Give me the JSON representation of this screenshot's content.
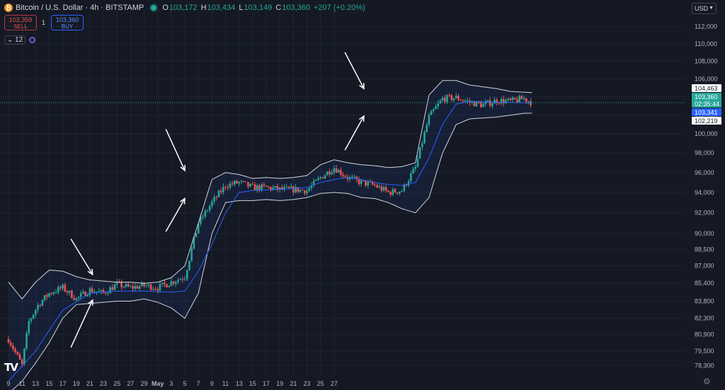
{
  "header": {
    "symbol_icon": "bitcoin-icon",
    "title": "Bitcoin / U.S. Dollar · 4h · BITSTAMP",
    "ohlc": [
      {
        "key": "O",
        "value": "103,172"
      },
      {
        "key": "H",
        "value": "103,434"
      },
      {
        "key": "L",
        "value": "103,149"
      },
      {
        "key": "C",
        "value": "103,360"
      }
    ],
    "change": "+207 (+0.20%)"
  },
  "trade": {
    "sell_price": "103,359",
    "sell_label": "SELL",
    "quantity": "1",
    "buy_price": "103,360",
    "buy_label": "BUY"
  },
  "indicators": {
    "collapsed_count": "12"
  },
  "currency": "USD",
  "colors": {
    "background": "#151924",
    "up": "#26a69a",
    "down": "#ef5350",
    "basis": "#2962ff",
    "band": "#d1d4dc",
    "arrow": "#ffffff"
  },
  "chart_data": {
    "type": "candlestick",
    "title": "",
    "xlabel": "",
    "ylabel": "",
    "scale": "log",
    "ylim": [
      77500,
      114000
    ],
    "x_ticks": [
      "9",
      "11",
      "13",
      "15",
      "17",
      "19",
      "21",
      "23",
      "25",
      "27",
      "29",
      "May",
      "3",
      "5",
      "7",
      "9",
      "11",
      "13",
      "15",
      "17",
      "19",
      "21",
      "23",
      "25",
      "27"
    ],
    "y_ticks": [
      112000,
      110000,
      108000,
      106000,
      104000,
      102000,
      100000,
      98000,
      96000,
      94000,
      92000,
      90000,
      88500,
      87000,
      85400,
      83800,
      82300,
      80900,
      79500,
      78300
    ],
    "y_tick_labels": [
      "112,000",
      "110,000",
      "108,000",
      "106,000",
      "104,000",
      "102,000",
      "100,000",
      "98,000",
      "96,000",
      "94,000",
      "92,000",
      "90,000",
      "88,500",
      "87,000",
      "85,400",
      "83,800",
      "82,300",
      "80,900",
      "79,500",
      "78,300"
    ],
    "price_path": [
      [
        0,
        80500
      ],
      [
        1,
        78300
      ],
      [
        1.5,
        82000
      ],
      [
        2.2,
        83500
      ],
      [
        3,
        84500
      ],
      [
        4,
        85000
      ],
      [
        5,
        84000
      ],
      [
        6,
        84800
      ],
      [
        7,
        84500
      ],
      [
        8,
        85300
      ],
      [
        9,
        85000
      ],
      [
        10,
        85200
      ],
      [
        11,
        85000
      ],
      [
        12,
        85500
      ],
      [
        13,
        86000
      ],
      [
        14,
        91000
      ],
      [
        15,
        93000
      ],
      [
        16,
        94700
      ],
      [
        17,
        95000
      ],
      [
        18,
        94500
      ],
      [
        19,
        94500
      ],
      [
        20,
        94300
      ],
      [
        21,
        94300
      ],
      [
        22,
        94200
      ],
      [
        23,
        95500
      ],
      [
        24,
        96500
      ],
      [
        25,
        95500
      ],
      [
        26,
        95000
      ],
      [
        27,
        94700
      ],
      [
        28,
        94000
      ],
      [
        29,
        94200
      ],
      [
        30,
        96500
      ],
      [
        31,
        101800
      ],
      [
        32,
        103800
      ],
      [
        33,
        103900
      ],
      [
        34,
        103400
      ],
      [
        35,
        103100
      ],
      [
        36,
        103600
      ],
      [
        37,
        103500
      ],
      [
        38,
        103800
      ],
      [
        38.6,
        103360
      ]
    ],
    "bands_upper": [
      [
        0,
        85500
      ],
      [
        1,
        84000
      ],
      [
        2,
        85500
      ],
      [
        3,
        86600
      ],
      [
        4,
        86500
      ],
      [
        5,
        86000
      ],
      [
        6,
        85700
      ],
      [
        7,
        85600
      ],
      [
        8,
        85500
      ],
      [
        9,
        85500
      ],
      [
        10,
        85400
      ],
      [
        11,
        85500
      ],
      [
        12,
        85900
      ],
      [
        13,
        87000
      ],
      [
        14,
        91000
      ],
      [
        15,
        95300
      ],
      [
        16,
        96000
      ],
      [
        17,
        95800
      ],
      [
        18,
        95400
      ],
      [
        19,
        95500
      ],
      [
        20,
        95400
      ],
      [
        21,
        95500
      ],
      [
        22,
        95700
      ],
      [
        23,
        96800
      ],
      [
        24,
        97300
      ],
      [
        25,
        97000
      ],
      [
        26,
        96800
      ],
      [
        27,
        96700
      ],
      [
        28,
        96500
      ],
      [
        29,
        96600
      ],
      [
        30,
        97000
      ],
      [
        31,
        104200
      ],
      [
        32,
        105800
      ],
      [
        33,
        105800
      ],
      [
        34,
        105300
      ],
      [
        35,
        105100
      ],
      [
        36,
        104900
      ],
      [
        37,
        104600
      ],
      [
        38,
        104500
      ],
      [
        38.6,
        104463
      ]
    ],
    "bands_lower": [
      [
        0,
        76000
      ],
      [
        1,
        77000
      ],
      [
        2,
        78500
      ],
      [
        3,
        80200
      ],
      [
        4,
        82300
      ],
      [
        5,
        83500
      ],
      [
        6,
        83600
      ],
      [
        7,
        83700
      ],
      [
        8,
        83800
      ],
      [
        9,
        83800
      ],
      [
        10,
        84000
      ],
      [
        11,
        83700
      ],
      [
        12,
        83200
      ],
      [
        13,
        82300
      ],
      [
        14,
        84500
      ],
      [
        15,
        90000
      ],
      [
        16,
        93000
      ],
      [
        17,
        93200
      ],
      [
        18,
        93200
      ],
      [
        19,
        93300
      ],
      [
        20,
        93200
      ],
      [
        21,
        93300
      ],
      [
        22,
        93500
      ],
      [
        23,
        93900
      ],
      [
        24,
        94000
      ],
      [
        25,
        93900
      ],
      [
        26,
        93500
      ],
      [
        27,
        93400
      ],
      [
        28,
        93000
      ],
      [
        29,
        92400
      ],
      [
        30,
        92000
      ],
      [
        31,
        93500
      ],
      [
        32,
        98000
      ],
      [
        33,
        101000
      ],
      [
        34,
        101600
      ],
      [
        35,
        101700
      ],
      [
        36,
        101800
      ],
      [
        37,
        102000
      ],
      [
        38,
        102200
      ],
      [
        38.6,
        102219
      ]
    ],
    "basis": [
      [
        0,
        77000
      ],
      [
        2,
        79500
      ],
      [
        4,
        83000
      ],
      [
        6,
        84500
      ],
      [
        8,
        84700
      ],
      [
        10,
        84700
      ],
      [
        12,
        84600
      ],
      [
        13,
        84700
      ],
      [
        14,
        86500
      ],
      [
        15,
        89000
      ],
      [
        16,
        92000
      ],
      [
        17,
        94000
      ],
      [
        18,
        94200
      ],
      [
        20,
        94300
      ],
      [
        22,
        94500
      ],
      [
        23,
        95000
      ],
      [
        24,
        95300
      ],
      [
        25,
        95500
      ],
      [
        26,
        95300
      ],
      [
        27,
        95000
      ],
      [
        28,
        94800
      ],
      [
        29,
        94700
      ],
      [
        30,
        95000
      ],
      [
        31,
        97500
      ],
      [
        32,
        101000
      ],
      [
        33,
        103200
      ],
      [
        34,
        103500
      ],
      [
        36,
        103400
      ],
      [
        38,
        103350
      ],
      [
        38.6,
        103341
      ]
    ],
    "axis_labels": [
      {
        "value": 104463,
        "label": "104,463",
        "bg": "#ffffff",
        "fg": "#131722"
      },
      {
        "value": 103360,
        "label": "103,360",
        "sublabel": "02:35:44",
        "bg": "#26a69a",
        "fg": "#ffffff"
      },
      {
        "value": 103341,
        "label": "103,341",
        "bg": "#2962ff",
        "fg": "#ffffff"
      },
      {
        "value": 102219,
        "label": "102,219",
        "bg": "#ffffff",
        "fg": "#131722"
      }
    ],
    "annotations": [
      {
        "type": "arrow",
        "points": [
          [
            4.6,
            89500
          ],
          [
            6.2,
            86200
          ]
        ]
      },
      {
        "type": "arrow",
        "points": [
          [
            4.6,
            79800
          ],
          [
            6.2,
            83900
          ]
        ]
      },
      {
        "type": "arrow",
        "points": [
          [
            11.6,
            100500
          ],
          [
            13.0,
            96200
          ]
        ]
      },
      {
        "type": "arrow",
        "points": [
          [
            11.6,
            90200
          ],
          [
            13.0,
            93400
          ]
        ]
      },
      {
        "type": "arrow",
        "points": [
          [
            24.8,
            109000
          ],
          [
            26.2,
            104900
          ]
        ]
      },
      {
        "type": "arrow",
        "points": [
          [
            24.8,
            98300
          ],
          [
            26.2,
            101900
          ]
        ]
      }
    ]
  }
}
